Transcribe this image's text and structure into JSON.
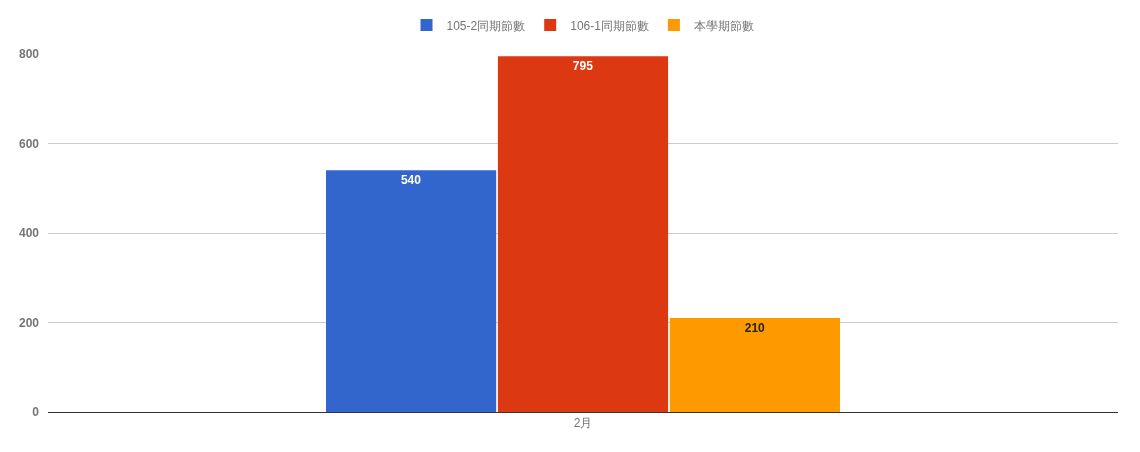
{
  "chart_data": {
    "type": "bar",
    "categories": [
      "2月"
    ],
    "series": [
      {
        "name": "105-2同期節數",
        "color": "#3366cc",
        "values": [
          540
        ]
      },
      {
        "name": "106-1同期節數",
        "color": "#dc3912",
        "values": [
          795
        ]
      },
      {
        "name": "本學期節數",
        "color": "#ff9900",
        "values": [
          210
        ]
      }
    ],
    "ylim": [
      0,
      800
    ],
    "yticks": [
      0,
      200,
      400,
      600,
      800
    ],
    "grid": "y",
    "legend": "top",
    "data_labels": true
  }
}
